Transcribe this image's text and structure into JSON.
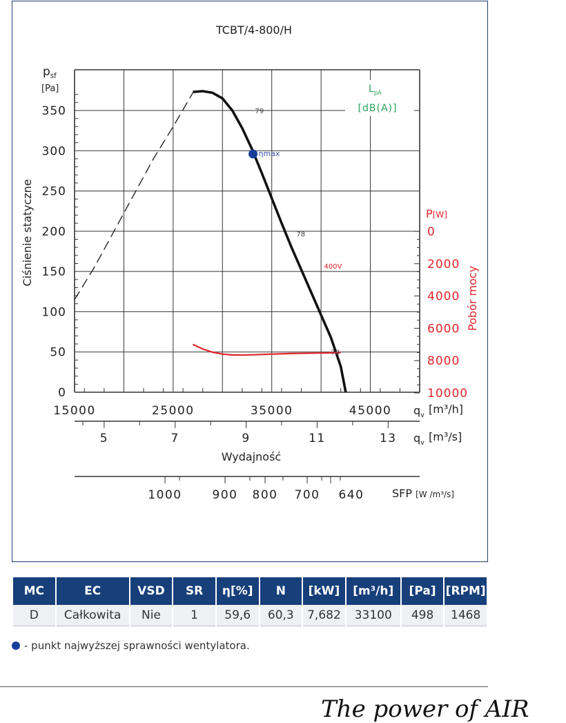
{
  "chart_data": {
    "type": "line",
    "title": "TCBT/4-800/H",
    "y_axis": {
      "label": "Ciśnienie statyczne",
      "symbol": "p",
      "symbol_sub": "sf",
      "unit": "[Pa]",
      "range": [
        0,
        350
      ],
      "ticks": [
        0,
        50,
        100,
        150,
        200,
        250,
        300,
        350
      ]
    },
    "y2_axis": {
      "label": "Pobór mocy",
      "symbol": "P",
      "unit": "[W]",
      "range": [
        0,
        10000
      ],
      "ticks": [
        0,
        2000,
        4000,
        6000,
        8000,
        10000
      ]
    },
    "x_axis": {
      "label": "Wydajność",
      "symbol": "q",
      "symbol_sub": "v",
      "unit_m3h": "[m³/h]",
      "unit_m3s": "[m³/s]",
      "range": [
        15000,
        50000
      ],
      "ticks_m3h": [
        15000,
        25000,
        35000,
        45000
      ],
      "ticks_m3s": [
        5,
        7,
        9,
        11,
        13
      ]
    },
    "sfp_axis": {
      "label": "SFP",
      "unit": "[W /m³/s]",
      "ticks": [
        1000,
        900,
        800,
        700,
        640
      ]
    },
    "sound_label": {
      "symbol": "L",
      "symbol_sub": "pA",
      "unit": "[dB(A)]"
    },
    "series": [
      {
        "name": "pressure",
        "x": [
          27000,
          28000,
          29000,
          30000,
          31000,
          32000,
          33000,
          34000,
          35000,
          36000,
          37000,
          38000,
          39000,
          40000,
          41000,
          42000,
          42500
        ],
        "y": [
          373,
          374,
          372,
          365,
          350,
          328,
          302,
          272,
          241,
          210,
          180,
          152,
          124,
          96,
          68,
          32,
          0
        ]
      },
      {
        "name": "pressure_unstable",
        "x": [
          15000,
          17000,
          19000,
          21000,
          23000,
          25000,
          27000
        ],
        "y": [
          115,
          155,
          200,
          245,
          290,
          330,
          372
        ]
      },
      {
        "name": "400V",
        "x": [
          27000,
          28000,
          29000,
          30000,
          31000,
          32000,
          33000,
          34000,
          35000,
          36000,
          37000,
          38000,
          39000,
          40000,
          41000,
          42000
        ],
        "y": [
          7000,
          7280,
          7480,
          7600,
          7650,
          7660,
          7640,
          7620,
          7600,
          7580,
          7560,
          7550,
          7540,
          7530,
          7520,
          7500
        ]
      }
    ],
    "curve_labels": [
      {
        "text": "79",
        "x": 33300,
        "y": 350
      },
      {
        "text": "78",
        "x": 37500,
        "y": 197
      },
      {
        "text": "78",
        "x": 41000,
        "y": 50
      },
      {
        "text": "400V",
        "x": 40300,
        "y": 157
      }
    ],
    "eta_max": {
      "label": "ηmax",
      "x": 33100,
      "y": 296
    }
  },
  "table": {
    "headers": [
      "MC",
      "EC",
      "VSD",
      "SR",
      "η[%]",
      "N",
      "[kW]",
      "[m³/h]",
      "[Pa]",
      "[RPM]"
    ],
    "row": [
      "D",
      "Całkowita",
      "Nie",
      "1",
      "59,6",
      "60,3",
      "7,682",
      "33100",
      "498",
      "1468"
    ]
  },
  "legend_note": "- punkt najwyższej sprawności wentylatora.",
  "slogan": "The power of AIR",
  "colors": {
    "frame": "#1e3d73",
    "header_bg": "#173f7a",
    "power": "#e0242c",
    "sound": "#2aa05a",
    "eta": "#173f9a"
  }
}
